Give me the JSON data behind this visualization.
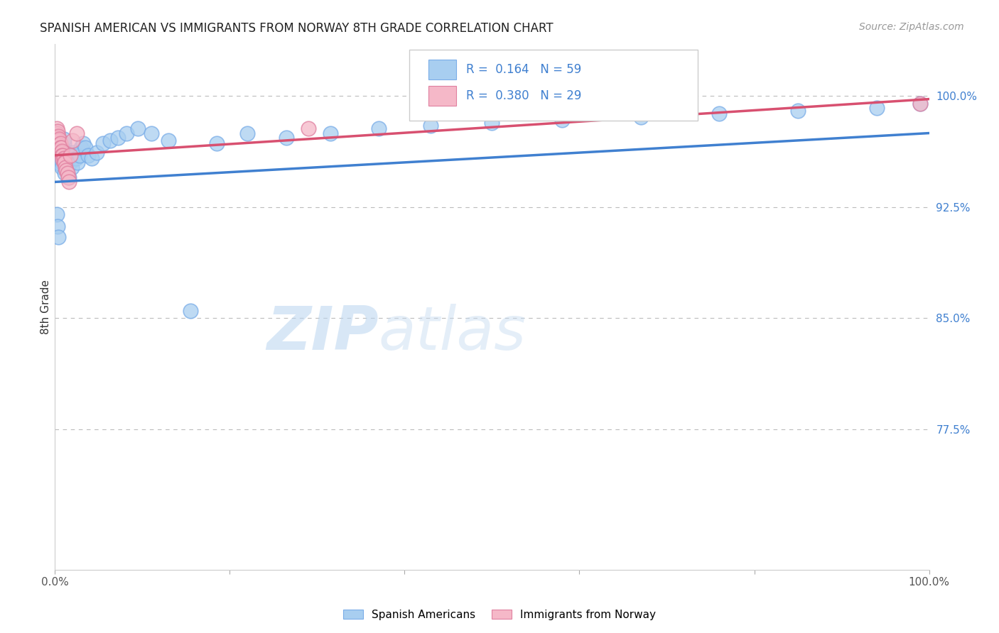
{
  "title": "SPANISH AMERICAN VS IMMIGRANTS FROM NORWAY 8TH GRADE CORRELATION CHART",
  "source": "Source: ZipAtlas.com",
  "ylabel": "8th Grade",
  "xlim": [
    0.0,
    1.0
  ],
  "ylim": [
    0.68,
    1.035
  ],
  "right_yticks": [
    0.775,
    0.85,
    0.925,
    1.0
  ],
  "right_yticklabels": [
    "77.5%",
    "85.0%",
    "92.5%",
    "100.0%"
  ],
  "grid_yvals": [
    0.775,
    0.85,
    0.925,
    1.0
  ],
  "blue_color": "#a8cef0",
  "blue_edge": "#7aade8",
  "pink_color": "#f5b8c8",
  "pink_edge": "#e080a0",
  "trend_blue": "#4080d0",
  "trend_pink": "#d85070",
  "watermark_zip": "#c8dff5",
  "watermark_atlas": "#c8ddf0",
  "legend_blue_text": "R =  0.164   N = 59",
  "legend_pink_text": "R =  0.380   N = 29",
  "blue_scatter_x": [
    0.002,
    0.003,
    0.003,
    0.004,
    0.005,
    0.005,
    0.006,
    0.006,
    0.007,
    0.007,
    0.008,
    0.008,
    0.009,
    0.01,
    0.01,
    0.011,
    0.012,
    0.013,
    0.014,
    0.015,
    0.016,
    0.017,
    0.018,
    0.019,
    0.02,
    0.022,
    0.024,
    0.026,
    0.028,
    0.03,
    0.032,
    0.035,
    0.038,
    0.042,
    0.048,
    0.055,
    0.063,
    0.072,
    0.082,
    0.095,
    0.11,
    0.13,
    0.155,
    0.185,
    0.22,
    0.265,
    0.315,
    0.37,
    0.43,
    0.5,
    0.58,
    0.67,
    0.76,
    0.85,
    0.94,
    0.99,
    0.002,
    0.003,
    0.004
  ],
  "blue_scatter_y": [
    0.975,
    0.972,
    0.969,
    0.966,
    0.963,
    0.96,
    0.957,
    0.954,
    0.965,
    0.958,
    0.955,
    0.952,
    0.962,
    0.968,
    0.971,
    0.948,
    0.958,
    0.955,
    0.952,
    0.962,
    0.945,
    0.958,
    0.955,
    0.952,
    0.962,
    0.96,
    0.958,
    0.955,
    0.96,
    0.965,
    0.968,
    0.965,
    0.96,
    0.958,
    0.962,
    0.968,
    0.97,
    0.972,
    0.975,
    0.978,
    0.975,
    0.97,
    0.855,
    0.968,
    0.975,
    0.972,
    0.975,
    0.978,
    0.98,
    0.982,
    0.984,
    0.986,
    0.988,
    0.99,
    0.992,
    0.995,
    0.92,
    0.912,
    0.905
  ],
  "pink_scatter_x": [
    0.002,
    0.002,
    0.003,
    0.003,
    0.004,
    0.004,
    0.005,
    0.005,
    0.006,
    0.006,
    0.007,
    0.007,
    0.008,
    0.008,
    0.009,
    0.009,
    0.01,
    0.01,
    0.011,
    0.012,
    0.013,
    0.014,
    0.015,
    0.016,
    0.018,
    0.02,
    0.025,
    0.29,
    0.99
  ],
  "pink_scatter_y": [
    0.978,
    0.975,
    0.976,
    0.972,
    0.973,
    0.97,
    0.971,
    0.967,
    0.968,
    0.965,
    0.965,
    0.962,
    0.963,
    0.96,
    0.96,
    0.957,
    0.958,
    0.955,
    0.955,
    0.952,
    0.95,
    0.948,
    0.945,
    0.942,
    0.96,
    0.97,
    0.975,
    0.978,
    0.995
  ],
  "blue_trendline": [
    0.0,
    1.0,
    0.942,
    0.975
  ],
  "pink_trendline": [
    0.0,
    1.0,
    0.96,
    0.998
  ],
  "background_color": "#ffffff"
}
